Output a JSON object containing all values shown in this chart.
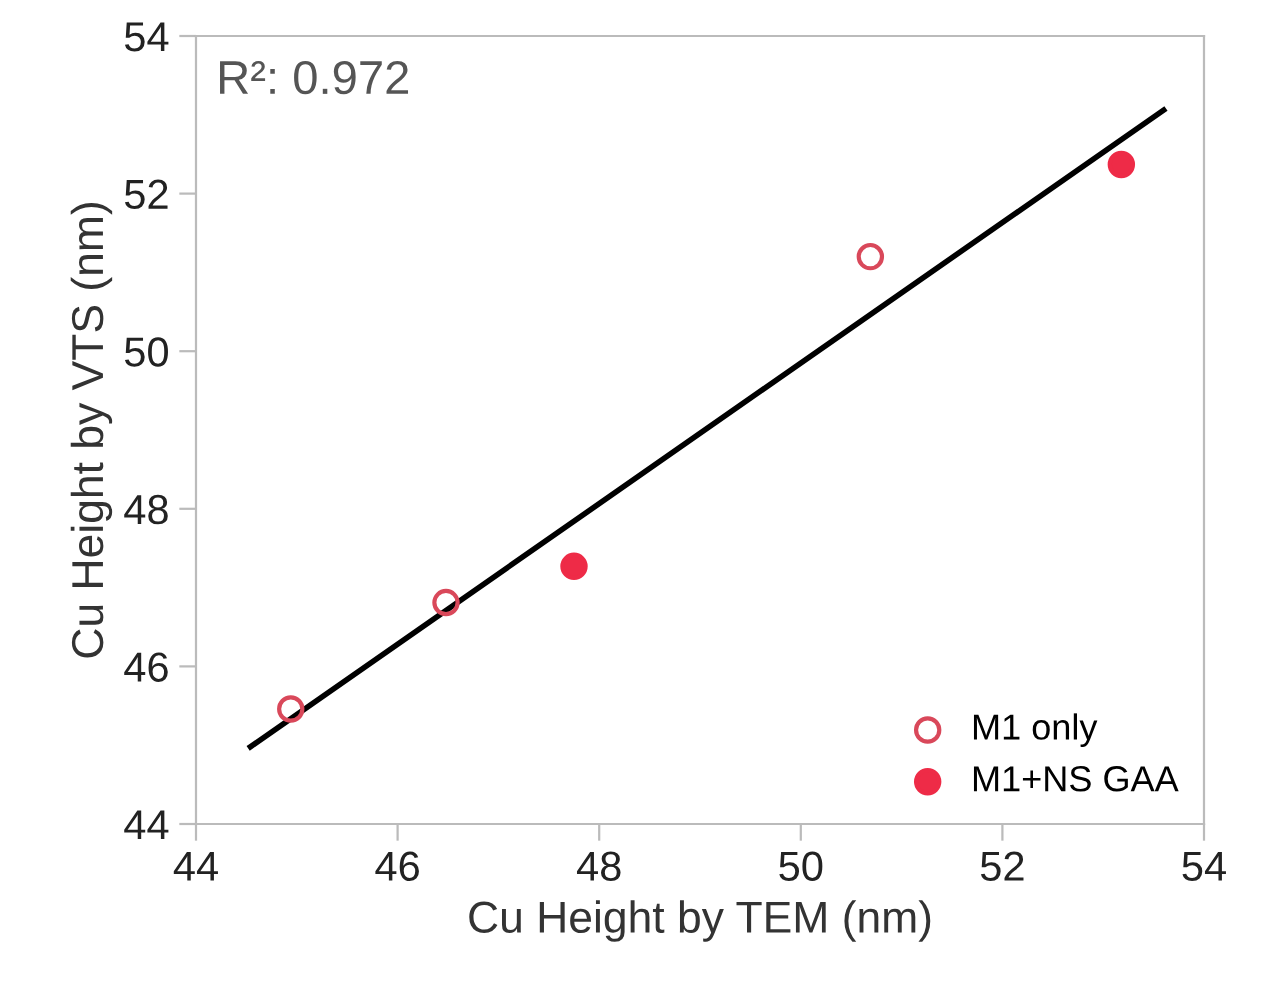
{
  "chart_data": {
    "type": "scatter",
    "xlabel": "Cu Height by TEM (nm)",
    "ylabel": "Cu Height by VTS (nm)",
    "xlim": [
      44,
      54
    ],
    "ylim": [
      44,
      54
    ],
    "xticks": [
      44,
      46,
      48,
      50,
      52,
      54
    ],
    "yticks": [
      44,
      46,
      48,
      50,
      52,
      54
    ],
    "grid": false,
    "legend": "bottom right",
    "annotations": [
      "R²: 0.972"
    ],
    "series": [
      {
        "name": "M1 only",
        "color": "#d9485a",
        "marker": "circle",
        "x": [
          44.94,
          46.48,
          50.69
        ],
        "values": [
          45.46,
          46.81,
          51.2
        ]
      },
      {
        "name": "M1+NS GAA",
        "color": "#ee2b47",
        "marker": "circle",
        "x": [
          47.75,
          53.18
        ],
        "values": [
          47.27,
          52.37
        ]
      },
      {
        "type": "line",
        "color": "#000000",
        "x": [
          44.54,
          53.6
        ],
        "values": [
          44.98,
          53.06
        ],
        "line_style": "solid",
        "marker": "none"
      }
    ]
  }
}
